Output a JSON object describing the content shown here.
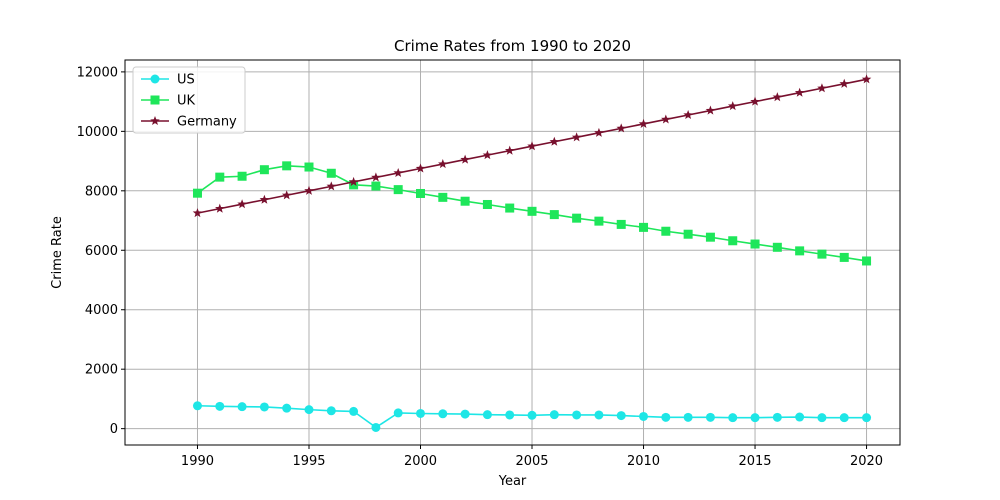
{
  "chart_data": {
    "type": "line",
    "title": "Crime Rates from 1990 to 2020",
    "xlabel": "Year",
    "ylabel": "Crime Rate",
    "xlim": [
      1986.75,
      2021.5
    ],
    "ylim": [
      -550,
      12400
    ],
    "xticks": [
      1990,
      1995,
      2000,
      2005,
      2010,
      2015,
      2020
    ],
    "yticks": [
      0,
      2000,
      4000,
      6000,
      8000,
      10000,
      12000
    ],
    "grid": true,
    "legend_position": "upper-left",
    "x": [
      1990,
      1991,
      1992,
      1993,
      1994,
      1995,
      1996,
      1997,
      1998,
      1999,
      2000,
      2001,
      2002,
      2003,
      2004,
      2005,
      2006,
      2007,
      2008,
      2009,
      2010,
      2011,
      2012,
      2013,
      2014,
      2015,
      2016,
      2017,
      2018,
      2019,
      2020
    ],
    "series": [
      {
        "name": "US",
        "color": "#1ee6e6",
        "marker": "circle",
        "values": [
          770,
          750,
          740,
          730,
          690,
          640,
          600,
          580,
          40,
          530,
          510,
          500,
          490,
          470,
          460,
          450,
          470,
          460,
          460,
          440,
          410,
          380,
          380,
          380,
          370,
          370,
          380,
          390,
          370,
          370,
          370
        ]
      },
      {
        "name": "UK",
        "color": "#1ee65a",
        "marker": "square",
        "values": [
          7920,
          8460,
          8490,
          8710,
          8840,
          8800,
          8590,
          8200,
          8160,
          8040,
          7910,
          7780,
          7650,
          7540,
          7420,
          7310,
          7200,
          7080,
          6980,
          6870,
          6770,
          6640,
          6540,
          6440,
          6320,
          6210,
          6100,
          5980,
          5870,
          5760,
          5640
        ]
      },
      {
        "name": "Germany",
        "color": "#78102e",
        "marker": "star",
        "values": [
          7250,
          7400,
          7550,
          7700,
          7850,
          8000,
          8150,
          8300,
          8450,
          8600,
          8750,
          8900,
          9050,
          9200,
          9350,
          9500,
          9650,
          9800,
          9950,
          10100,
          10250,
          10400,
          10550,
          10700,
          10850,
          11000,
          11150,
          11300,
          11450,
          11600,
          11750
        ]
      }
    ]
  }
}
